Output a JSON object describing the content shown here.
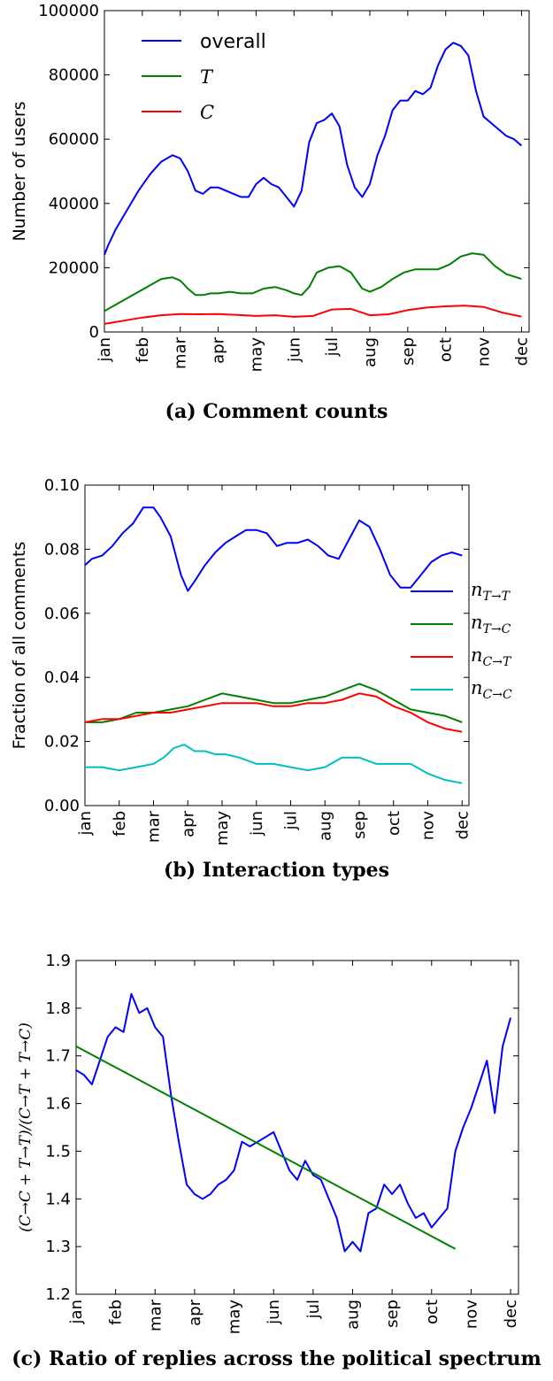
{
  "chart_data": [
    {
      "type": "line",
      "caption": "(a) Comment counts",
      "ylabel": "Number of users",
      "ylim": [
        0,
        100000
      ],
      "yticks": [
        "0",
        "20000",
        "40000",
        "60000",
        "80000",
        "100000"
      ],
      "yticks_values": [
        0,
        20000,
        40000,
        60000,
        80000,
        100000
      ],
      "xticks": [
        "jan",
        "feb",
        "mar",
        "apr",
        "may",
        "jun",
        "jul",
        "aug",
        "sep",
        "oct",
        "nov",
        "dec"
      ],
      "legend_position": "upper-left",
      "series": [
        {
          "name": "overall",
          "color": "#0000ff",
          "x": [
            0,
            0.1,
            0.3,
            0.6,
            0.9,
            1.2,
            1.5,
            1.8,
            2.0,
            2.2,
            2.4,
            2.6,
            2.8,
            3.0,
            3.2,
            3.4,
            3.6,
            3.8,
            4.0,
            4.2,
            4.4,
            4.6,
            4.8,
            5.0,
            5.2,
            5.4,
            5.6,
            5.8,
            6.0,
            6.2,
            6.4,
            6.6,
            6.8,
            7.0,
            7.2,
            7.4,
            7.6,
            7.8,
            8.0,
            8.2,
            8.4,
            8.6,
            8.8,
            9.0,
            9.2,
            9.4,
            9.6,
            9.8,
            10.0,
            10.2,
            10.4,
            10.6,
            10.8,
            11.0
          ],
          "values": [
            24000,
            27000,
            32000,
            38000,
            44000,
            49000,
            53000,
            55000,
            54000,
            50000,
            44000,
            43000,
            45000,
            45000,
            44000,
            43000,
            42000,
            42000,
            46000,
            48000,
            46000,
            45000,
            42000,
            39000,
            44000,
            59000,
            65000,
            66000,
            68000,
            64000,
            52000,
            45000,
            42000,
            46000,
            55000,
            61000,
            69000,
            72000,
            72000,
            75000,
            74000,
            76000,
            83000,
            88000,
            90000,
            89000,
            86000,
            75000,
            67000,
            65000,
            63000,
            61000,
            60000,
            58000
          ]
        },
        {
          "name": "T",
          "color": "#008000",
          "x": [
            0,
            0.3,
            0.6,
            0.9,
            1.2,
            1.5,
            1.8,
            2.0,
            2.2,
            2.4,
            2.6,
            2.8,
            3.0,
            3.3,
            3.6,
            3.9,
            4.2,
            4.5,
            4.8,
            5.0,
            5.2,
            5.4,
            5.6,
            5.9,
            6.2,
            6.5,
            6.8,
            7.0,
            7.3,
            7.6,
            7.9,
            8.2,
            8.5,
            8.8,
            9.1,
            9.4,
            9.7,
            10.0,
            10.3,
            10.6,
            11.0
          ],
          "values": [
            6500,
            8500,
            10500,
            12500,
            14500,
            16500,
            17000,
            16000,
            13500,
            11500,
            11500,
            12000,
            12000,
            12500,
            12000,
            12000,
            13500,
            14000,
            13000,
            12000,
            11500,
            14000,
            18500,
            20000,
            20500,
            18500,
            13500,
            12500,
            14000,
            16500,
            18500,
            19500,
            19500,
            19500,
            21000,
            23500,
            24500,
            24000,
            20500,
            18000,
            16500
          ]
        },
        {
          "name": "C",
          "color": "#ff0000",
          "x": [
            0,
            0.5,
            1.0,
            1.5,
            2.0,
            2.5,
            3.0,
            3.5,
            4.0,
            4.5,
            5.0,
            5.5,
            6.0,
            6.5,
            7.0,
            7.5,
            8.0,
            8.5,
            9.0,
            9.5,
            10.0,
            10.5,
            11.0
          ],
          "values": [
            2500,
            3500,
            4500,
            5200,
            5600,
            5500,
            5600,
            5300,
            5000,
            5200,
            4700,
            5000,
            7000,
            7200,
            5200,
            5500,
            6800,
            7600,
            8000,
            8200,
            7800,
            6000,
            4800
          ]
        }
      ]
    },
    {
      "type": "line",
      "caption": "(b) Interaction types",
      "ylabel": "Fraction of all comments",
      "ylim": [
        0.0,
        0.1
      ],
      "yticks": [
        "0.00",
        "0.02",
        "0.04",
        "0.06",
        "0.08",
        "0.10"
      ],
      "yticks_values": [
        0.0,
        0.02,
        0.04,
        0.06,
        0.08,
        0.1
      ],
      "xticks": [
        "jan",
        "feb",
        "mar",
        "apr",
        "may",
        "jun",
        "jul",
        "aug",
        "sep",
        "oct",
        "nov",
        "dec"
      ],
      "xlim": [
        0,
        14.3
      ],
      "legend_position": "right",
      "series": [
        {
          "name": "n_{T→T}",
          "label_base": "n",
          "label_sub": "T→T",
          "color": "#0000ff",
          "x": [
            0,
            0.2,
            0.5,
            0.8,
            1.1,
            1.4,
            1.7,
            2.0,
            2.2,
            2.5,
            2.8,
            3.0,
            3.2,
            3.5,
            3.8,
            4.1,
            4.4,
            4.7,
            5.0,
            5.3,
            5.6,
            5.9,
            6.2,
            6.5,
            6.8,
            7.1,
            7.4,
            7.7,
            8.0,
            8.3,
            8.6,
            8.9,
            9.2,
            9.5,
            9.8,
            10.1,
            10.4,
            10.7,
            11.0
          ],
          "values": [
            0.075,
            0.077,
            0.078,
            0.081,
            0.085,
            0.088,
            0.093,
            0.093,
            0.09,
            0.084,
            0.072,
            0.067,
            0.07,
            0.075,
            0.079,
            0.082,
            0.084,
            0.086,
            0.086,
            0.085,
            0.081,
            0.082,
            0.082,
            0.083,
            0.081,
            0.078,
            0.077,
            0.083,
            0.089,
            0.087,
            0.08,
            0.072,
            0.068,
            0.068,
            0.072,
            0.076,
            0.078,
            0.079,
            0.078
          ]
        },
        {
          "name": "n_{T→C}",
          "label_base": "n",
          "label_sub": "T→C",
          "color": "#008000",
          "x": [
            0,
            0.5,
            1.0,
            1.5,
            2.0,
            2.5,
            3.0,
            3.5,
            4.0,
            4.5,
            5.0,
            5.5,
            6.0,
            6.5,
            7.0,
            7.5,
            8.0,
            8.5,
            9.0,
            9.5,
            10.0,
            10.5,
            11.0
          ],
          "values": [
            0.026,
            0.026,
            0.027,
            0.029,
            0.029,
            0.03,
            0.031,
            0.033,
            0.035,
            0.034,
            0.033,
            0.032,
            0.032,
            0.033,
            0.034,
            0.036,
            0.038,
            0.036,
            0.033,
            0.03,
            0.029,
            0.028,
            0.026
          ]
        },
        {
          "name": "n_{C→T}",
          "label_base": "n",
          "label_sub": "C→T",
          "color": "#ff0000",
          "x": [
            0,
            0.5,
            1.0,
            1.5,
            2.0,
            2.5,
            3.0,
            3.5,
            4.0,
            4.5,
            5.0,
            5.5,
            6.0,
            6.5,
            7.0,
            7.5,
            8.0,
            8.5,
            9.0,
            9.5,
            10.0,
            10.5,
            11.0
          ],
          "values": [
            0.026,
            0.027,
            0.027,
            0.028,
            0.029,
            0.029,
            0.03,
            0.031,
            0.032,
            0.032,
            0.032,
            0.031,
            0.031,
            0.032,
            0.032,
            0.033,
            0.035,
            0.034,
            0.031,
            0.029,
            0.026,
            0.024,
            0.023
          ]
        },
        {
          "name": "n_{C→C}",
          "label_base": "n",
          "label_sub": "C→C",
          "color": "#00bfbf",
          "x": [
            0,
            0.5,
            1.0,
            1.5,
            2.0,
            2.3,
            2.6,
            2.9,
            3.2,
            3.5,
            3.8,
            4.1,
            4.5,
            5.0,
            5.5,
            6.0,
            6.5,
            7.0,
            7.5,
            8.0,
            8.5,
            9.0,
            9.5,
            10.0,
            10.5,
            11.0
          ],
          "values": [
            0.012,
            0.012,
            0.011,
            0.012,
            0.013,
            0.015,
            0.018,
            0.019,
            0.017,
            0.017,
            0.016,
            0.016,
            0.015,
            0.013,
            0.013,
            0.012,
            0.011,
            0.012,
            0.015,
            0.015,
            0.013,
            0.013,
            0.013,
            0.01,
            0.008,
            0.007
          ]
        }
      ]
    },
    {
      "type": "line",
      "caption": "(c) Ratio of replies across the political spectrum",
      "ylabel": "(C→C + T→T)/(C→T + T→C)",
      "ylim": [
        1.2,
        1.9
      ],
      "yticks": [
        "1.2",
        "1.3",
        "1.4",
        "1.5",
        "1.6",
        "1.7",
        "1.8",
        "1.9"
      ],
      "yticks_values": [
        1.2,
        1.3,
        1.4,
        1.5,
        1.6,
        1.7,
        1.8,
        1.9
      ],
      "xticks": [
        "jan",
        "feb",
        "mar",
        "apr",
        "may",
        "jun",
        "jul",
        "aug",
        "sep",
        "oct",
        "nov",
        "dec"
      ],
      "xlim": [
        0,
        11.2
      ],
      "series": [
        {
          "color": "#0000ff",
          "x": [
            0,
            0.2,
            0.4,
            0.6,
            0.8,
            1.0,
            1.2,
            1.4,
            1.6,
            1.8,
            2.0,
            2.2,
            2.4,
            2.6,
            2.8,
            3.0,
            3.2,
            3.4,
            3.6,
            3.8,
            4.0,
            4.2,
            4.4,
            4.6,
            4.8,
            5.0,
            5.2,
            5.4,
            5.6,
            5.8,
            6.0,
            6.2,
            6.4,
            6.6,
            6.8,
            7.0,
            7.2,
            7.4,
            7.6,
            7.8,
            8.0,
            8.2,
            8.4,
            8.6,
            8.8,
            9.0,
            9.2,
            9.4,
            9.6,
            9.8,
            10.0,
            10.2,
            10.4,
            10.6,
            10.8,
            11.0
          ],
          "values": [
            1.67,
            1.66,
            1.64,
            1.69,
            1.74,
            1.76,
            1.75,
            1.83,
            1.79,
            1.8,
            1.76,
            1.74,
            1.62,
            1.52,
            1.43,
            1.41,
            1.4,
            1.41,
            1.43,
            1.44,
            1.46,
            1.52,
            1.51,
            1.52,
            1.53,
            1.54,
            1.5,
            1.46,
            1.44,
            1.48,
            1.45,
            1.44,
            1.4,
            1.36,
            1.29,
            1.31,
            1.29,
            1.37,
            1.38,
            1.43,
            1.41,
            1.43,
            1.39,
            1.36,
            1.37,
            1.34,
            1.36,
            1.38,
            1.5,
            1.55,
            1.59,
            1.64,
            1.69,
            1.58,
            1.72,
            1.78
          ]
        },
        {
          "color": "#008000",
          "x": [
            0,
            9.6
          ],
          "values": [
            1.72,
            1.295
          ]
        }
      ]
    }
  ]
}
